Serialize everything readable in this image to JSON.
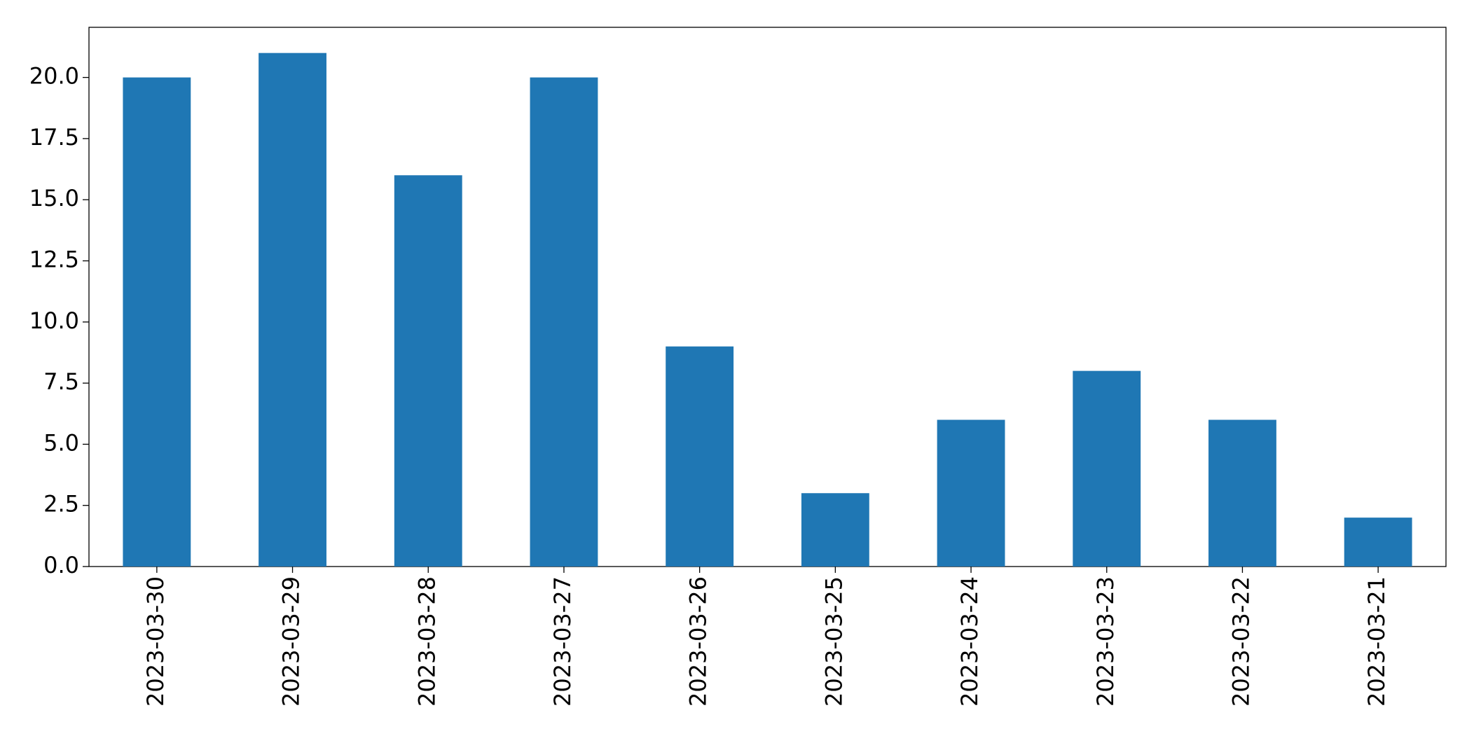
{
  "chart_data": {
    "type": "bar",
    "categories": [
      "2023-03-30",
      "2023-03-29",
      "2023-03-28",
      "2023-03-27",
      "2023-03-26",
      "2023-03-25",
      "2023-03-24",
      "2023-03-23",
      "2023-03-22",
      "2023-03-21"
    ],
    "values": [
      20,
      21,
      16,
      20,
      9,
      3,
      6,
      8,
      6,
      2
    ],
    "color": "#1f77b4",
    "ylim": [
      0,
      22.05
    ],
    "yticks": [
      {
        "value": 0,
        "label": "0.0"
      },
      2.5,
      {
        "value": 5,
        "label": "5.0"
      },
      7.5,
      {
        "value": 10,
        "label": "10.0"
      },
      12.5,
      {
        "value": 15,
        "label": "15.0"
      },
      17.5,
      {
        "value": 20,
        "label": "20.0"
      }
    ],
    "grid": false
  }
}
